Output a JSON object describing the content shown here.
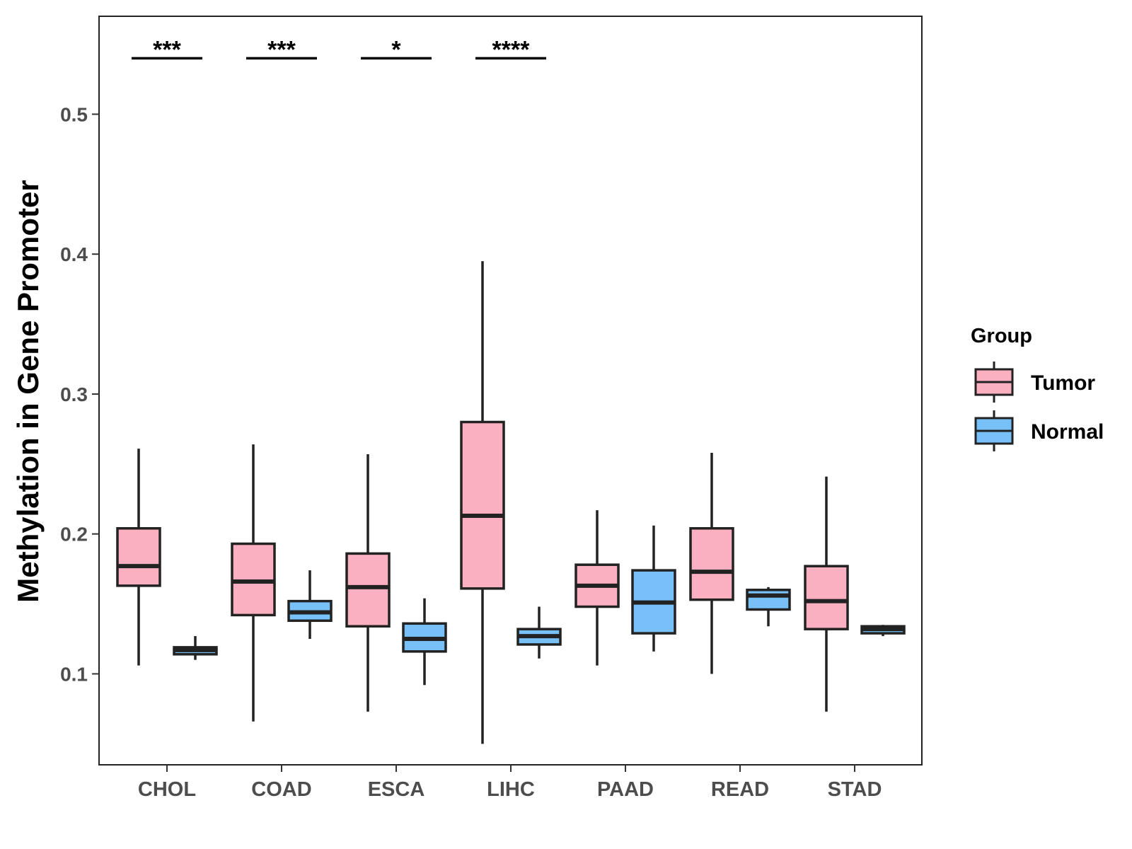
{
  "chart_data": {
    "type": "box",
    "ylabel": "Methylation in Gene Promoter",
    "xlabel": "",
    "ylim": [
      0.035,
      0.57
    ],
    "yticks": [
      0.1,
      0.2,
      0.3,
      0.4,
      0.5
    ],
    "ytick_labels": [
      "0.1",
      "0.2",
      "0.3",
      "0.4",
      "0.5"
    ],
    "categories": [
      "CHOL",
      "COAD",
      "ESCA",
      "LIHC",
      "PAAD",
      "READ",
      "STAD"
    ],
    "legend": {
      "title": "Group",
      "position": "right",
      "entries": [
        {
          "name": "Tumor",
          "color": "#fbb0c2"
        },
        {
          "name": "Normal",
          "color": "#77c1f8"
        }
      ]
    },
    "series": [
      {
        "name": "Tumor",
        "color": "#fbb0c2",
        "boxes": [
          {
            "category": "CHOL",
            "min": 0.106,
            "q1": 0.163,
            "median": 0.177,
            "q3": 0.204,
            "max": 0.261
          },
          {
            "category": "COAD",
            "min": 0.066,
            "q1": 0.142,
            "median": 0.166,
            "q3": 0.193,
            "max": 0.264
          },
          {
            "category": "ESCA",
            "min": 0.073,
            "q1": 0.134,
            "median": 0.162,
            "q3": 0.186,
            "max": 0.257
          },
          {
            "category": "LIHC",
            "min": 0.05,
            "q1": 0.161,
            "median": 0.213,
            "q3": 0.28,
            "max": 0.395
          },
          {
            "category": "PAAD",
            "min": 0.106,
            "q1": 0.148,
            "median": 0.163,
            "q3": 0.178,
            "max": 0.217
          },
          {
            "category": "READ",
            "min": 0.1,
            "q1": 0.153,
            "median": 0.173,
            "q3": 0.204,
            "max": 0.258
          },
          {
            "category": "STAD",
            "min": 0.073,
            "q1": 0.132,
            "median": 0.152,
            "q3": 0.177,
            "max": 0.241
          }
        ]
      },
      {
        "name": "Normal",
        "color": "#77c1f8",
        "boxes": [
          {
            "category": "CHOL",
            "min": 0.11,
            "q1": 0.114,
            "median": 0.117,
            "q3": 0.119,
            "max": 0.127
          },
          {
            "category": "COAD",
            "min": 0.125,
            "q1": 0.138,
            "median": 0.144,
            "q3": 0.152,
            "max": 0.174
          },
          {
            "category": "ESCA",
            "min": 0.092,
            "q1": 0.116,
            "median": 0.125,
            "q3": 0.136,
            "max": 0.154
          },
          {
            "category": "LIHC",
            "min": 0.111,
            "q1": 0.121,
            "median": 0.127,
            "q3": 0.132,
            "max": 0.148
          },
          {
            "category": "PAAD",
            "min": 0.116,
            "q1": 0.129,
            "median": 0.151,
            "q3": 0.174,
            "max": 0.206
          },
          {
            "category": "READ",
            "min": 0.134,
            "q1": 0.146,
            "median": 0.156,
            "q3": 0.16,
            "max": 0.162
          },
          {
            "category": "STAD",
            "min": 0.127,
            "q1": 0.129,
            "median": 0.132,
            "q3": 0.134,
            "max": 0.135
          }
        ]
      }
    ],
    "annotations": [
      {
        "category": "CHOL",
        "label": "***"
      },
      {
        "category": "COAD",
        "label": "***"
      },
      {
        "category": "ESCA",
        "label": "*"
      },
      {
        "category": "LIHC",
        "label": "****"
      }
    ],
    "annotation_y": 0.54
  }
}
